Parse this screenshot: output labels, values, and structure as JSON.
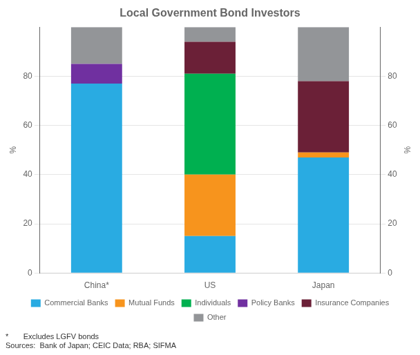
{
  "chart_data": {
    "type": "bar",
    "title": "Local Government Bond Investors",
    "categories": [
      "China*",
      "US",
      "Japan"
    ],
    "series": [
      {
        "name": "Commercial Banks",
        "color": "#29ABE2",
        "values": [
          77,
          15,
          47
        ]
      },
      {
        "name": "Mutual Funds",
        "color": "#F7941D",
        "values": [
          0,
          25,
          2
        ]
      },
      {
        "name": "Individuals",
        "color": "#00B050",
        "values": [
          0,
          41,
          0
        ]
      },
      {
        "name": "Policy Banks",
        "color": "#7030A0",
        "values": [
          8,
          0,
          0
        ]
      },
      {
        "name": "Insurance Companies",
        "color": "#6B2037",
        "values": [
          0,
          13,
          29
        ]
      },
      {
        "name": "Other",
        "color": "#939598",
        "values": [
          15,
          6,
          22
        ]
      }
    ],
    "stacked": true,
    "ylabel": "%",
    "ylim": [
      0,
      100
    ],
    "yticks": [
      0,
      20,
      40,
      60,
      80
    ],
    "y2label": "%",
    "y2lim": [
      0,
      100
    ],
    "y2ticks": [
      0,
      20,
      40,
      60,
      80
    ],
    "grid": true,
    "legend": "bottom",
    "annotations": [
      "*       Excludes LGFV bonds",
      "Sources:  Bank of Japan; CEIC Data; RBA; SIFMA"
    ]
  }
}
